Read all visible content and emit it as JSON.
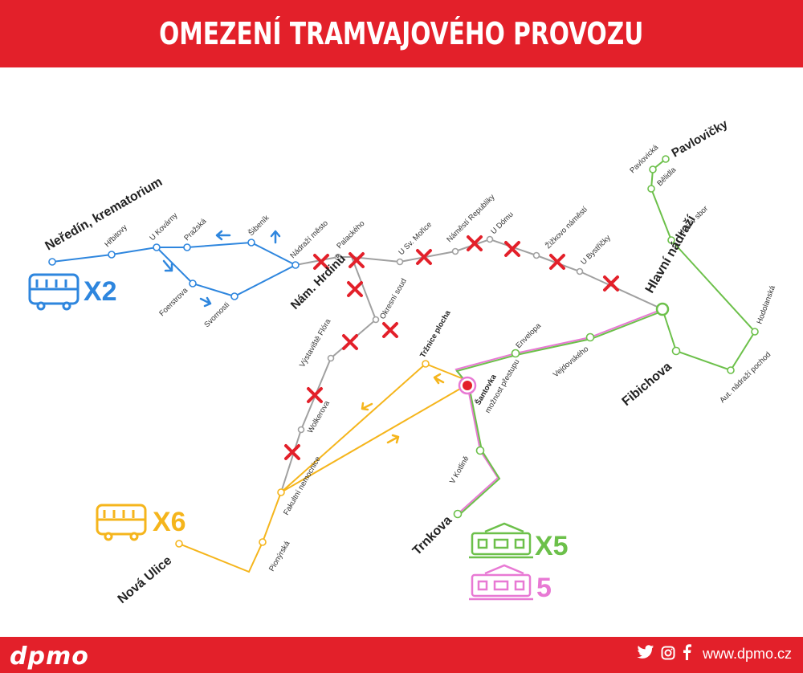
{
  "header": {
    "title": "OMEZENÍ TRAMVAJOVÉHO PROVOZU"
  },
  "footer": {
    "logo": "dpmo",
    "website": "www.dpmo.cz",
    "social_icons": [
      "twitter-icon",
      "instagram-icon",
      "facebook-icon"
    ]
  },
  "colors": {
    "header": "#e3202a",
    "blue": "#2e86de",
    "yellow": "#f5b51c",
    "green": "#6cc04a",
    "pink": "#e879d4",
    "gray": "#a0a0a0",
    "red": "#e3202a"
  },
  "legend": {
    "x2": {
      "label": "X2",
      "icon": "bus-icon"
    },
    "x6": {
      "label": "X6",
      "icon": "bus-icon"
    },
    "x5": {
      "label": "X5",
      "icon": "tram-icon"
    },
    "l5": {
      "label": "5",
      "icon": "tram-icon"
    }
  },
  "stops": {
    "neredin": "Neředín, krematorium",
    "hrbitovy": "Hřbitovy",
    "ukovarny": "U Kovárny",
    "prazska": "Pražská",
    "sibenik": "Šibeník",
    "nadrazi_mesto": "Nádraží město",
    "foerstrova": "Foerstrova",
    "svornosti": "Svornosti",
    "palackeho": "Palackého",
    "nam_hrdinu": "Nám. Hrdinů",
    "usvmorice": "U Sv. Mořice",
    "nam_republiky": "Náměstí Republiky",
    "udomu": "U Dómu",
    "zizkovo": "Žižkovo náměstí",
    "ubystricky": "U Bystřičky",
    "hlavni_nadrazi": "Hlavní nádraží",
    "pavlovicka": "Pavlovická",
    "pavlovicky": "Pavlovičky",
    "belidla": "Bělidla",
    "husuv_sbor": "Husův sbor",
    "hodolanska": "Hodolanská",
    "aut_nadrazi": "Aut. nádraží pochod",
    "fibichova": "Fibichova",
    "vejdovskeho": "Vejdovského",
    "envelopa": "Envelopa",
    "santovka": "Šantovka",
    "santovka_note": "možnost přestupu",
    "trznice": "Tržnice plocha",
    "okresni_soud": "Okresní soud",
    "vystaviste": "Výstaviště Flóra",
    "wolkerova": "Wolkerova",
    "fakultni": "Fakultní nemocnice",
    "pionyrska": "Pionýrská",
    "nova_ulice": "Nová Ulice",
    "vkotline": "V Kotlině",
    "trnkova": "Trnkova"
  }
}
